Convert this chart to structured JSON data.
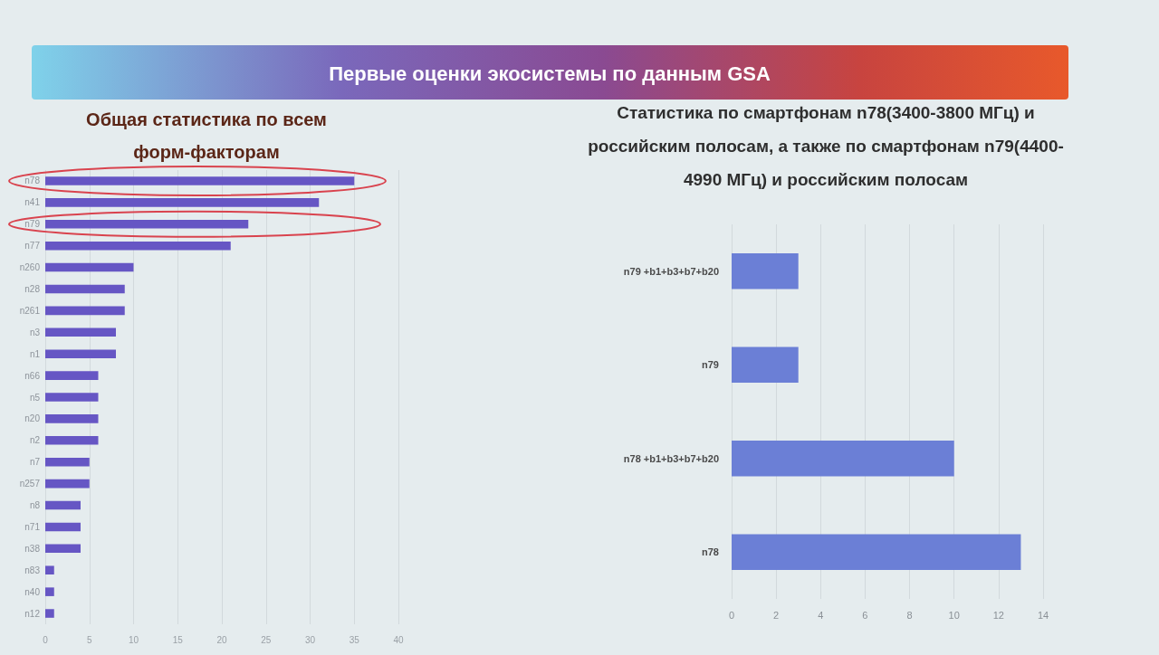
{
  "chart_data": [
    {
      "type": "bar",
      "title": "Первые оценки экосистемы по данным GSA",
      "subtitle": "Общая статистика по всем форм-факторам",
      "orientation": "horizontal",
      "categories": [
        "n78",
        "n41",
        "n79",
        "n77",
        "n260",
        "n28",
        "n261",
        "n3",
        "n1",
        "n66",
        "n5",
        "n20",
        "n2",
        "n7",
        "n257",
        "n8",
        "n71",
        "n38",
        "n83",
        "n40",
        "n12"
      ],
      "values": [
        35,
        31,
        23,
        21,
        10,
        9,
        9,
        8,
        8,
        6,
        6,
        6,
        6,
        5,
        5,
        4,
        4,
        4,
        1,
        1,
        1
      ],
      "color": "#6656c4",
      "xlim": [
        0,
        40
      ],
      "xticks": [
        0,
        5,
        10,
        15,
        20,
        25,
        30,
        35,
        40
      ],
      "grid": "x"
    },
    {
      "type": "bar",
      "title": "Статистика по смартфонам n78(3400-3800 МГц) и российским полосам, а также по смартфонам n79(4400-4990 МГц) и российским полосам",
      "orientation": "horizontal",
      "categories": [
        "n79 +b1+b3+b7+b20",
        "n79",
        "n78 +b1+b3+b7+b20",
        "n78"
      ],
      "values": [
        3,
        3,
        10,
        13
      ],
      "color": "#6b7fd6",
      "xlim": [
        0,
        14
      ],
      "xticks": [
        0,
        2,
        4,
        6,
        8,
        10,
        12,
        14
      ],
      "grid": "x"
    }
  ]
}
